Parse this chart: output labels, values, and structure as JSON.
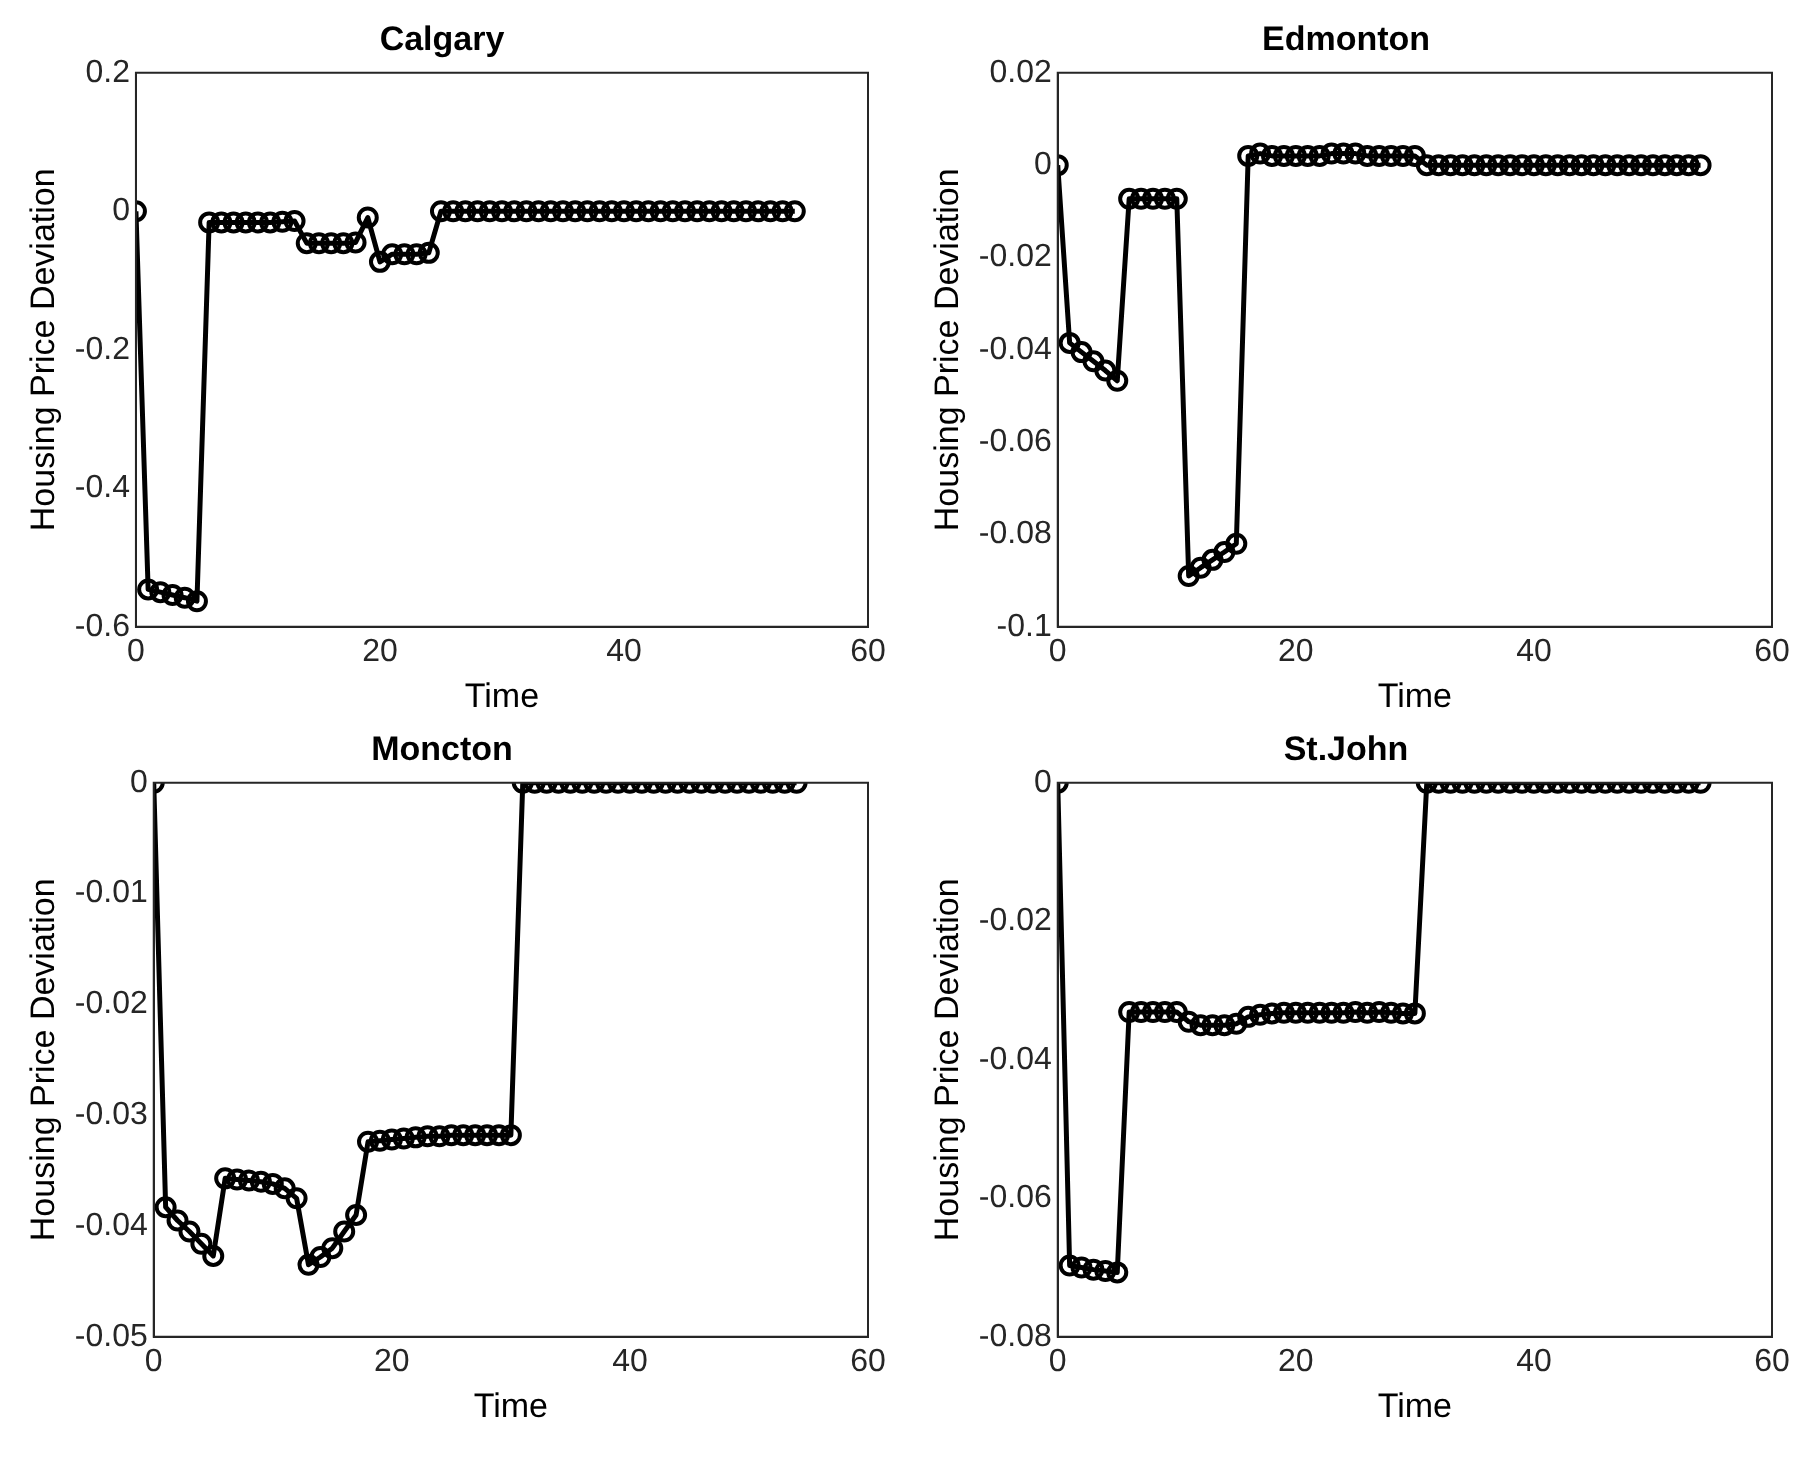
{
  "chart_data": [
    {
      "type": "line",
      "title": "Calgary",
      "xlabel": "Time",
      "ylabel": "Housing Price Deviation",
      "marker": "circle",
      "line_style": "solid",
      "grid": false,
      "legend": false,
      "xlim": [
        0,
        60
      ],
      "xticks": [
        0,
        20,
        40,
        60
      ],
      "ylim": [
        -0.6,
        0.2
      ],
      "yticks": [
        -0.6,
        -0.4,
        -0.2,
        0,
        0.2
      ],
      "x": [
        0,
        1,
        2,
        3,
        4,
        5,
        6,
        7,
        8,
        9,
        10,
        11,
        12,
        13,
        14,
        15,
        16,
        17,
        18,
        19,
        20,
        21,
        22,
        23,
        24,
        25,
        26,
        27,
        28,
        29,
        30,
        31,
        32,
        33,
        34,
        35,
        36,
        37,
        38,
        39,
        40,
        41,
        42,
        43,
        44,
        45,
        46,
        47,
        48,
        49,
        50,
        51,
        52,
        53,
        54
      ],
      "series": [
        {
          "color": "#000000",
          "values": [
            0,
            -0.546,
            -0.55,
            -0.554,
            -0.558,
            -0.563,
            -0.016,
            -0.016,
            -0.016,
            -0.016,
            -0.016,
            -0.016,
            -0.015,
            -0.014,
            -0.046,
            -0.046,
            -0.046,
            -0.046,
            -0.045,
            -0.009,
            -0.073,
            -0.062,
            -0.062,
            -0.062,
            -0.06,
            0,
            0,
            0,
            0,
            0,
            0,
            0,
            0,
            0,
            0,
            0,
            0,
            0,
            0,
            0,
            0,
            0,
            0,
            0,
            0,
            0,
            0,
            0,
            0,
            0,
            0,
            0,
            0,
            0,
            0
          ]
        }
      ]
    },
    {
      "type": "line",
      "title": "Edmonton",
      "xlabel": "Time",
      "ylabel": "Housing Price Deviation",
      "marker": "circle",
      "line_style": "solid",
      "grid": false,
      "legend": false,
      "xlim": [
        0,
        60
      ],
      "xticks": [
        0,
        20,
        40,
        60
      ],
      "ylim": [
        -0.1,
        0.02
      ],
      "yticks": [
        -0.1,
        -0.08,
        -0.06,
        -0.04,
        -0.02,
        0,
        0.02
      ],
      "x": [
        0,
        1,
        2,
        3,
        4,
        5,
        6,
        7,
        8,
        9,
        10,
        11,
        12,
        13,
        14,
        15,
        16,
        17,
        18,
        19,
        20,
        21,
        22,
        23,
        24,
        25,
        26,
        27,
        28,
        29,
        30,
        31,
        32,
        33,
        34,
        35,
        36,
        37,
        38,
        39,
        40,
        41,
        42,
        43,
        44,
        45,
        46,
        47,
        48,
        49,
        50,
        51,
        52,
        53,
        54
      ],
      "series": [
        {
          "color": "#000000",
          "values": [
            0,
            -0.0385,
            -0.0405,
            -0.0425,
            -0.0445,
            -0.0467,
            -0.0073,
            -0.0073,
            -0.0073,
            -0.0073,
            -0.0073,
            -0.089,
            -0.0872,
            -0.0855,
            -0.0838,
            -0.082,
            0.002,
            0.0025,
            0.002,
            0.002,
            0.002,
            0.002,
            0.002,
            0.0025,
            0.0025,
            0.0025,
            0.002,
            0.002,
            0.002,
            0.002,
            0.002,
            0,
            0,
            0,
            0,
            0,
            0,
            0,
            0,
            0,
            0,
            0,
            0,
            0,
            0,
            0,
            0,
            0,
            0,
            0,
            0,
            0,
            0,
            0,
            0
          ]
        }
      ]
    },
    {
      "type": "line",
      "title": "Moncton",
      "xlabel": "Time",
      "ylabel": "Housing Price Deviation",
      "marker": "circle",
      "line_style": "solid",
      "grid": false,
      "legend": false,
      "xlim": [
        0,
        60
      ],
      "xticks": [
        0,
        20,
        40,
        60
      ],
      "ylim": [
        -0.05,
        0
      ],
      "yticks": [
        -0.05,
        -0.04,
        -0.03,
        -0.02,
        -0.01,
        0
      ],
      "x": [
        0,
        1,
        2,
        3,
        4,
        5,
        6,
        7,
        8,
        9,
        10,
        11,
        12,
        13,
        14,
        15,
        16,
        17,
        18,
        19,
        20,
        21,
        22,
        23,
        24,
        25,
        26,
        27,
        28,
        29,
        30,
        31,
        32,
        33,
        34,
        35,
        36,
        37,
        38,
        39,
        40,
        41,
        42,
        43,
        44,
        45,
        46,
        47,
        48,
        49,
        50,
        51,
        52,
        53,
        54
      ],
      "series": [
        {
          "color": "#000000",
          "values": [
            0,
            -0.0383,
            -0.0395,
            -0.0405,
            -0.0416,
            -0.0427,
            -0.0357,
            -0.0358,
            -0.0359,
            -0.036,
            -0.0362,
            -0.0366,
            -0.0375,
            -0.0435,
            -0.0428,
            -0.042,
            -0.0405,
            -0.039,
            -0.0324,
            -0.0323,
            -0.0322,
            -0.0321,
            -0.032,
            -0.0319,
            -0.0319,
            -0.0318,
            -0.0318,
            -0.0318,
            -0.0318,
            -0.0318,
            -0.0318,
            0,
            0,
            0,
            0,
            0,
            0,
            0,
            0,
            0,
            0,
            0,
            0,
            0,
            0,
            0,
            0,
            0,
            0,
            0,
            0,
            0,
            0,
            0,
            0
          ]
        }
      ]
    },
    {
      "type": "line",
      "title": "St.John",
      "xlabel": "Time",
      "ylabel": "Housing Price Deviation",
      "marker": "circle",
      "line_style": "solid",
      "grid": false,
      "legend": false,
      "xlim": [
        0,
        60
      ],
      "xticks": [
        0,
        20,
        40,
        60
      ],
      "ylim": [
        -0.08,
        0
      ],
      "yticks": [
        -0.08,
        -0.06,
        -0.04,
        -0.02,
        0
      ],
      "x": [
        0,
        1,
        2,
        3,
        4,
        5,
        6,
        7,
        8,
        9,
        10,
        11,
        12,
        13,
        14,
        15,
        16,
        17,
        18,
        19,
        20,
        21,
        22,
        23,
        24,
        25,
        26,
        27,
        28,
        29,
        30,
        31,
        32,
        33,
        34,
        35,
        36,
        37,
        38,
        39,
        40,
        41,
        42,
        43,
        44,
        45,
        46,
        47,
        48,
        49,
        50,
        51,
        52,
        53,
        54
      ],
      "series": [
        {
          "color": "#000000",
          "values": [
            0,
            -0.0697,
            -0.07,
            -0.0703,
            -0.0705,
            -0.0707,
            -0.0331,
            -0.0331,
            -0.0331,
            -0.0331,
            -0.0331,
            -0.0345,
            -0.035,
            -0.035,
            -0.035,
            -0.0348,
            -0.0338,
            -0.0335,
            -0.0333,
            -0.0332,
            -0.0332,
            -0.0332,
            -0.0332,
            -0.0332,
            -0.0332,
            -0.0331,
            -0.0332,
            -0.0331,
            -0.0332,
            -0.0333,
            -0.0333,
            0,
            0,
            0,
            0,
            0,
            0,
            0,
            0,
            0,
            0,
            0,
            0,
            0,
            0,
            0,
            0,
            0,
            0,
            0,
            0,
            0,
            0,
            0,
            0
          ]
        }
      ]
    }
  ]
}
